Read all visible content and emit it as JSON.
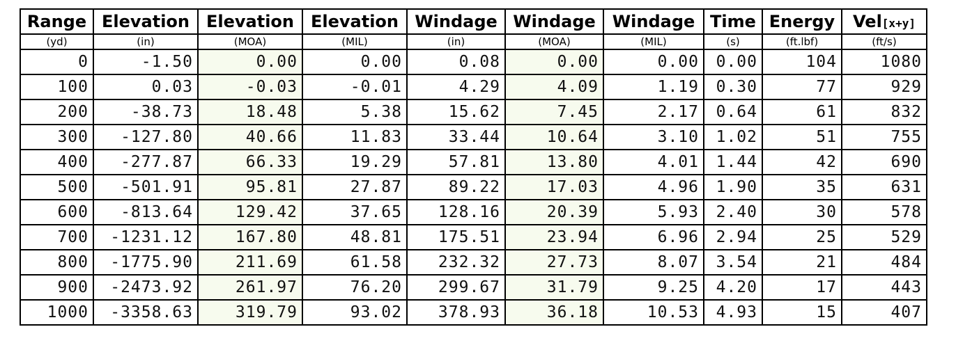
{
  "columns": [
    {
      "title": "Range",
      "title_sub": "",
      "unit": "(yd)",
      "tint": false
    },
    {
      "title": "Elevation",
      "title_sub": "",
      "unit": "(in)",
      "tint": false
    },
    {
      "title": "Elevation",
      "title_sub": "",
      "unit": "(MOA)",
      "tint": true
    },
    {
      "title": "Elevation",
      "title_sub": "",
      "unit": "(MIL)",
      "tint": false
    },
    {
      "title": "Windage",
      "title_sub": "",
      "unit": "(in)",
      "tint": false
    },
    {
      "title": "Windage",
      "title_sub": "",
      "unit": "(MOA)",
      "tint": true
    },
    {
      "title": "Windage",
      "title_sub": "",
      "unit": "(MIL)",
      "tint": false
    },
    {
      "title": "Time",
      "title_sub": "",
      "unit": "(s)",
      "tint": false
    },
    {
      "title": "Energy",
      "title_sub": "",
      "unit": "(ft.lbf)",
      "tint": false
    },
    {
      "title": "Vel",
      "title_sub": "[x+y]",
      "unit": "(ft/s)",
      "tint": false
    }
  ],
  "rows": [
    [
      "0",
      "-1.50",
      "0.00",
      "0.00",
      "0.08",
      "0.00",
      "0.00",
      "0.00",
      "104",
      "1080"
    ],
    [
      "100",
      "0.03",
      "-0.03",
      "-0.01",
      "4.29",
      "4.09",
      "1.19",
      "0.30",
      "77",
      "929"
    ],
    [
      "200",
      "-38.73",
      "18.48",
      "5.38",
      "15.62",
      "7.45",
      "2.17",
      "0.64",
      "61",
      "832"
    ],
    [
      "300",
      "-127.80",
      "40.66",
      "11.83",
      "33.44",
      "10.64",
      "3.10",
      "1.02",
      "51",
      "755"
    ],
    [
      "400",
      "-277.87",
      "66.33",
      "19.29",
      "57.81",
      "13.80",
      "4.01",
      "1.44",
      "42",
      "690"
    ],
    [
      "500",
      "-501.91",
      "95.81",
      "27.87",
      "89.22",
      "17.03",
      "4.96",
      "1.90",
      "35",
      "631"
    ],
    [
      "600",
      "-813.64",
      "129.42",
      "37.65",
      "128.16",
      "20.39",
      "5.93",
      "2.40",
      "30",
      "578"
    ],
    [
      "700",
      "-1231.12",
      "167.80",
      "48.81",
      "175.51",
      "23.94",
      "6.96",
      "2.94",
      "25",
      "529"
    ],
    [
      "800",
      "-1775.90",
      "211.69",
      "61.58",
      "232.32",
      "27.73",
      "8.07",
      "3.54",
      "21",
      "484"
    ],
    [
      "900",
      "-2473.92",
      "261.97",
      "76.20",
      "299.67",
      "31.79",
      "9.25",
      "4.20",
      "17",
      "443"
    ],
    [
      "1000",
      "-3358.63",
      "319.79",
      "93.02",
      "378.93",
      "36.18",
      "10.53",
      "4.93",
      "15",
      "407"
    ]
  ],
  "colors": {
    "border": "#000000",
    "tint": "#f7fbee"
  }
}
